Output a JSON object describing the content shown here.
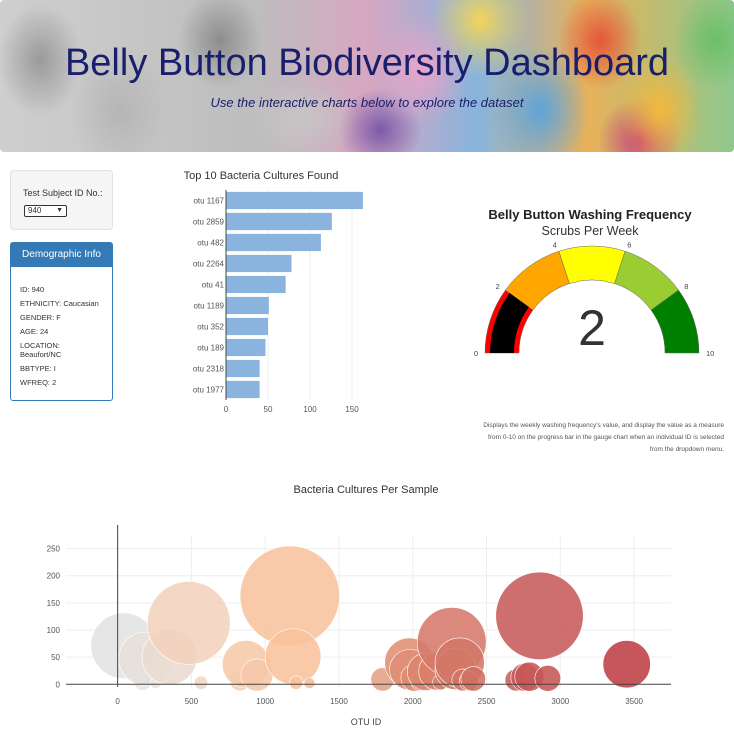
{
  "header": {
    "title": "Belly Button Biodiversity Dashboard",
    "subtitle": "Use the interactive charts below to explore the dataset"
  },
  "selector": {
    "label": "Test Subject ID No.:",
    "selected": "940"
  },
  "demographics": {
    "heading": "Demographic Info",
    "lines": [
      "ID: 940",
      "ETHNICITY: Caucasian",
      "GENDER: F",
      "AGE: 24",
      "LOCATION: Beaufort/NC",
      "BBTYPE: I",
      "WFREQ: 2"
    ]
  },
  "gauge": {
    "title": "Belly Button Washing Frequency",
    "subtitle": "Scrubs Per Week",
    "value": 2,
    "display_value": "2",
    "range": [
      0,
      10
    ],
    "ticks": [
      "0",
      "2",
      "4",
      "6",
      "8",
      "10"
    ],
    "band_colors": [
      "#ff0000",
      "#ffa500",
      "#ffff00",
      "#9acd32",
      "#008000"
    ],
    "needle_color": "#000000",
    "note_lines": [
      "Displays the weekly washing frequency's value, and display the value as a measure",
      "from 0-10 on the progress bar in the gauge chart when an individual ID is selected",
      "from the dropdown menu."
    ]
  },
  "chart_data": [
    {
      "type": "bar",
      "orientation": "horizontal",
      "title": "Top 10 Bacteria Cultures Found",
      "categories": [
        "otu 1167",
        "otu 2859",
        "otu 482",
        "otu 2264",
        "otu 41",
        "otu 1189",
        "otu 352",
        "otu 189",
        "otu 2318",
        "otu 1977"
      ],
      "values": [
        163,
        126,
        113,
        78,
        71,
        51,
        50,
        47,
        40,
        40
      ],
      "xlim": [
        0,
        175
      ],
      "xticks": [
        "0",
        "50",
        "100",
        "150"
      ],
      "color": "#8ab4de"
    },
    {
      "type": "scatter",
      "title": "Bacteria Cultures Per Sample",
      "xlabel": "OTU ID",
      "ylabel": "",
      "xlim": [
        -350,
        3750
      ],
      "ylim": [
        -5,
        275
      ],
      "xticks": [
        "0",
        "500",
        "1000",
        "1500",
        "2000",
        "2500",
        "3000",
        "3500"
      ],
      "yticks": [
        "0",
        "50",
        "100",
        "150",
        "200",
        "250"
      ],
      "points": [
        {
          "x": 41,
          "y": 71,
          "c": "#e3e3e3"
        },
        {
          "x": 170,
          "y": 5,
          "c": "#e8e4e1"
        },
        {
          "x": 189,
          "y": 47,
          "c": "#e6e0dc"
        },
        {
          "x": 258,
          "y": 2,
          "c": "#e7e2de"
        },
        {
          "x": 352,
          "y": 50,
          "c": "#eadbd1"
        },
        {
          "x": 482,
          "y": 113,
          "c": "#f3d2bc"
        },
        {
          "x": 565,
          "y": 3,
          "c": "#f2d6c4"
        },
        {
          "x": 830,
          "y": 7,
          "c": "#f4cfb6"
        },
        {
          "x": 870,
          "y": 37,
          "c": "#f6c9aa"
        },
        {
          "x": 944,
          "y": 17,
          "c": "#f6c7a8"
        },
        {
          "x": 1167,
          "y": 163,
          "c": "#f8c39e"
        },
        {
          "x": 1189,
          "y": 51,
          "c": "#f8c29c"
        },
        {
          "x": 1210,
          "y": 3,
          "c": "#f7c19b"
        },
        {
          "x": 1300,
          "y": 2,
          "c": "#f5bd98"
        },
        {
          "x": 1795,
          "y": 9,
          "c": "#e5a083"
        },
        {
          "x": 1960,
          "y": 5,
          "c": "#e1957a"
        },
        {
          "x": 1977,
          "y": 40,
          "c": "#df8f74"
        },
        {
          "x": 1980,
          "y": 27,
          "c": "#df8e74"
        },
        {
          "x": 2011,
          "y": 12,
          "c": "#de8c72"
        },
        {
          "x": 2050,
          "y": 6,
          "c": "#dc886f"
        },
        {
          "x": 2090,
          "y": 23,
          "c": "#db856d"
        },
        {
          "x": 2170,
          "y": 24,
          "c": "#d9806a"
        },
        {
          "x": 2188,
          "y": 4,
          "c": "#d87f69"
        },
        {
          "x": 2264,
          "y": 78,
          "c": "#d5796a"
        },
        {
          "x": 2290,
          "y": 28,
          "c": "#d47869"
        },
        {
          "x": 2318,
          "y": 40,
          "c": "#d37667"
        },
        {
          "x": 2340,
          "y": 8,
          "c": "#d27466"
        },
        {
          "x": 2380,
          "y": 6,
          "c": "#d17265"
        },
        {
          "x": 2410,
          "y": 10,
          "c": "#d07063"
        },
        {
          "x": 2700,
          "y": 8,
          "c": "#c95c5c"
        },
        {
          "x": 2760,
          "y": 13,
          "c": "#c8595a"
        },
        {
          "x": 2790,
          "y": 14,
          "c": "#c75858"
        },
        {
          "x": 2859,
          "y": 126,
          "c": "#c85a5a"
        },
        {
          "x": 2915,
          "y": 11,
          "c": "#c65555"
        },
        {
          "x": 3450,
          "y": 37,
          "c": "#be3e46"
        }
      ]
    }
  ]
}
